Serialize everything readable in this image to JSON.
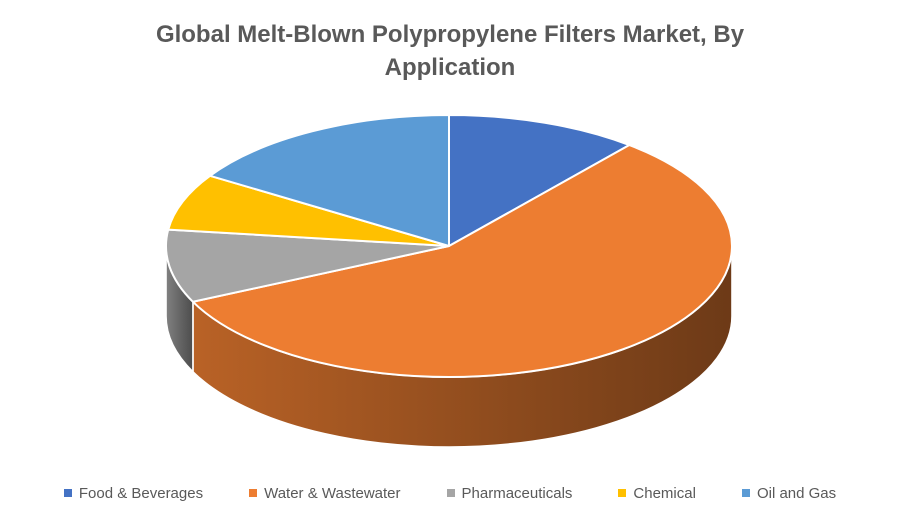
{
  "title": {
    "line1": "Global Melt-Blown Polypropylene Filters Market, By",
    "line2": "Application"
  },
  "colors": {
    "background": "#FFFFFF",
    "title_text": "#595959",
    "legend_text": "#595959",
    "slice_border": "#FFFFFF"
  },
  "chart_data": {
    "type": "pie",
    "style": "3d",
    "title": "Global Melt-Blown Polypropylene Filters Market, By Application",
    "categories": [
      "Food & Beverages",
      "Water & Wastewater",
      "Pharmaceuticals",
      "Chemical",
      "Oil and Gas"
    ],
    "values": [
      11,
      57,
      9,
      7,
      16
    ],
    "unit": "percent",
    "colors": [
      "#4472C4",
      "#ED7D31",
      "#A5A5A5",
      "#FFC000",
      "#5B9BD5"
    ],
    "start_angle_deg": 0,
    "direction": "clockwise",
    "data_labels_shown": false,
    "legend_position": "bottom"
  }
}
